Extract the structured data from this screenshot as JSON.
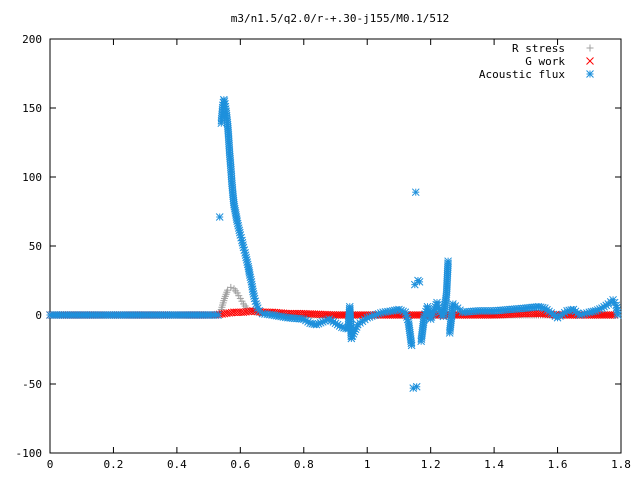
{
  "chart_data": {
    "type": "scatter",
    "title": "m3/n1.5/q2.0/r-+.30-j155/M0.1/512",
    "xlabel": "",
    "ylabel": "",
    "xlim": [
      0,
      1.8
    ],
    "ylim": [
      -100,
      200
    ],
    "x_ticks": [
      "0",
      "0.2",
      "0.4",
      "0.6",
      "0.8",
      "1",
      "1.2",
      "1.4",
      "1.6",
      "1.8"
    ],
    "y_ticks": [
      "200",
      "150",
      "100",
      "50",
      "0",
      "-50",
      "-100"
    ],
    "grid": false,
    "legend_position": "top-right",
    "series": [
      {
        "name": "R stress",
        "marker": "+",
        "color": "#a0a0a0",
        "points": [
          [
            0.0,
            0
          ],
          [
            0.1,
            0
          ],
          [
            0.2,
            0
          ],
          [
            0.3,
            0
          ],
          [
            0.4,
            0
          ],
          [
            0.5,
            0
          ],
          [
            0.53,
            0
          ],
          [
            0.54,
            4
          ],
          [
            0.55,
            12
          ],
          [
            0.56,
            18
          ],
          [
            0.57,
            20
          ],
          [
            0.58,
            19
          ],
          [
            0.59,
            16
          ],
          [
            0.6,
            12
          ],
          [
            0.61,
            8
          ],
          [
            0.62,
            5
          ],
          [
            0.63,
            3
          ],
          [
            0.65,
            2
          ],
          [
            0.7,
            1
          ],
          [
            0.8,
            0
          ],
          [
            0.9,
            0
          ],
          [
            1.0,
            0
          ],
          [
            1.1,
            0
          ],
          [
            1.2,
            0
          ],
          [
            1.3,
            0
          ],
          [
            1.4,
            0
          ],
          [
            1.5,
            0
          ],
          [
            1.6,
            0
          ],
          [
            1.7,
            0
          ],
          [
            1.78,
            0
          ]
        ]
      },
      {
        "name": "G work",
        "marker": "x",
        "color": "#ff0000",
        "points": [
          [
            0.0,
            0
          ],
          [
            0.2,
            0
          ],
          [
            0.4,
            0
          ],
          [
            0.52,
            0
          ],
          [
            0.55,
            1
          ],
          [
            0.58,
            2
          ],
          [
            0.61,
            2
          ],
          [
            0.64,
            3
          ],
          [
            0.67,
            2
          ],
          [
            0.7,
            2
          ],
          [
            0.75,
            1
          ],
          [
            0.8,
            1
          ],
          [
            0.9,
            0
          ],
          [
            1.0,
            0
          ],
          [
            1.1,
            0
          ],
          [
            1.2,
            0
          ],
          [
            1.3,
            0
          ],
          [
            1.4,
            0
          ],
          [
            1.5,
            1
          ],
          [
            1.55,
            1
          ],
          [
            1.6,
            0
          ],
          [
            1.7,
            0
          ],
          [
            1.78,
            0
          ]
        ]
      },
      {
        "name": "Acoustic flux",
        "marker": "*",
        "color": "#1e90dc",
        "points": [
          [
            0.0,
            0
          ],
          [
            0.1,
            0
          ],
          [
            0.2,
            0
          ],
          [
            0.3,
            0
          ],
          [
            0.4,
            0
          ],
          [
            0.5,
            0
          ],
          [
            0.53,
            0
          ],
          [
            0.535,
            71
          ],
          [
            0.54,
            139
          ],
          [
            0.545,
            152
          ],
          [
            0.548,
            156
          ],
          [
            0.55,
            155
          ],
          [
            0.553,
            151
          ],
          [
            0.556,
            146
          ],
          [
            0.56,
            138
          ],
          [
            0.563,
            129
          ],
          [
            0.566,
            118
          ],
          [
            0.57,
            107
          ],
          [
            0.573,
            97
          ],
          [
            0.576,
            89
          ],
          [
            0.58,
            80
          ],
          [
            0.585,
            74
          ],
          [
            0.59,
            68
          ],
          [
            0.595,
            63
          ],
          [
            0.6,
            58
          ],
          [
            0.605,
            54
          ],
          [
            0.61,
            49
          ],
          [
            0.615,
            45
          ],
          [
            0.62,
            40
          ],
          [
            0.625,
            35
          ],
          [
            0.63,
            29
          ],
          [
            0.635,
            24
          ],
          [
            0.64,
            17
          ],
          [
            0.645,
            12
          ],
          [
            0.65,
            8
          ],
          [
            0.655,
            5
          ],
          [
            0.66,
            3
          ],
          [
            0.67,
            1
          ],
          [
            0.7,
            0
          ],
          [
            0.75,
            -2
          ],
          [
            0.8,
            -3
          ],
          [
            0.82,
            -6
          ],
          [
            0.84,
            -7
          ],
          [
            0.86,
            -5
          ],
          [
            0.88,
            -3
          ],
          [
            0.9,
            -6
          ],
          [
            0.92,
            -9
          ],
          [
            0.94,
            -10
          ],
          [
            0.945,
            6
          ],
          [
            0.95,
            -17
          ],
          [
            0.97,
            -7
          ],
          [
            1.0,
            -2
          ],
          [
            1.05,
            2
          ],
          [
            1.08,
            3
          ],
          [
            1.1,
            4
          ],
          [
            1.12,
            2
          ],
          [
            1.13,
            -5
          ],
          [
            1.14,
            -22
          ],
          [
            1.145,
            -53
          ],
          [
            1.15,
            22
          ],
          [
            1.153,
            89
          ],
          [
            1.156,
            -52
          ],
          [
            1.16,
            25
          ],
          [
            1.165,
            24
          ],
          [
            1.17,
            -19
          ],
          [
            1.18,
            -1
          ],
          [
            1.19,
            6
          ],
          [
            1.2,
            -3
          ],
          [
            1.22,
            9
          ],
          [
            1.23,
            2
          ],
          [
            1.24,
            -1
          ],
          [
            1.25,
            15
          ],
          [
            1.255,
            39
          ],
          [
            1.26,
            -13
          ],
          [
            1.27,
            8
          ],
          [
            1.3,
            2
          ],
          [
            1.35,
            3
          ],
          [
            1.4,
            3
          ],
          [
            1.45,
            4
          ],
          [
            1.5,
            5
          ],
          [
            1.54,
            6
          ],
          [
            1.56,
            5
          ],
          [
            1.6,
            -2
          ],
          [
            1.63,
            3
          ],
          [
            1.65,
            4
          ],
          [
            1.67,
            0
          ],
          [
            1.7,
            2
          ],
          [
            1.72,
            3
          ],
          [
            1.74,
            5
          ],
          [
            1.76,
            8
          ],
          [
            1.775,
            11
          ],
          [
            1.785,
            7
          ],
          [
            1.79,
            0
          ]
        ]
      }
    ]
  }
}
